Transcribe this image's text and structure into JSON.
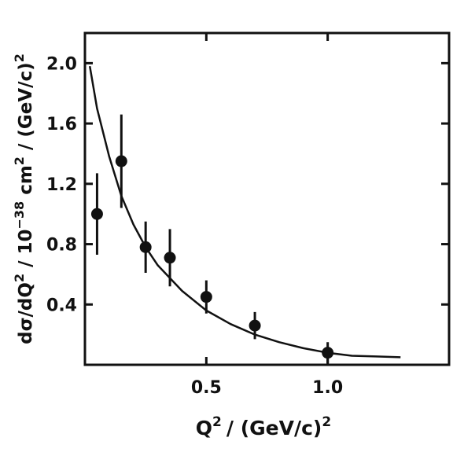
{
  "chart_data": {
    "type": "scatter",
    "title": "",
    "xlabel": "Q",
    "xlabel_sup": "2",
    "xlabel_tail": "/ (GeV/c)",
    "xlabel_tail_sup": "2",
    "ylabel_parts": [
      {
        "text": "dσ/dQ",
        "sup": false
      },
      {
        "text": "2",
        "sup": true
      },
      {
        "text": " / 10",
        "sup": false
      },
      {
        "text": "−38",
        "sup": true
      },
      {
        "text": " cm",
        "sup": false
      },
      {
        "text": "2",
        "sup": true
      },
      {
        "text": " / (GeV/c)",
        "sup": false
      },
      {
        "text": "2",
        "sup": true
      }
    ],
    "xlim": [
      0,
      1.5
    ],
    "ylim": [
      0,
      2.2
    ],
    "x_ticks": [
      0.5,
      1.0
    ],
    "x_tick_labels": [
      "0.5",
      "1.0"
    ],
    "y_ticks": [
      0.4,
      0.8,
      1.2,
      1.6,
      2.0
    ],
    "y_tick_labels": [
      "0.4",
      "0.8",
      "1.2",
      "1.6",
      "2.0"
    ],
    "grid": false,
    "points": [
      {
        "x": 0.05,
        "y": 1.0,
        "err": 0.27
      },
      {
        "x": 0.15,
        "y": 1.35,
        "err": 0.31
      },
      {
        "x": 0.25,
        "y": 0.78,
        "err": 0.17
      },
      {
        "x": 0.35,
        "y": 0.71,
        "err": 0.19
      },
      {
        "x": 0.5,
        "y": 0.45,
        "err": 0.11
      },
      {
        "x": 0.7,
        "y": 0.26,
        "err": 0.09
      },
      {
        "x": 1.0,
        "y": 0.08,
        "err": 0.07
      }
    ],
    "fit_curve": {
      "x": [
        0.02,
        0.05,
        0.1,
        0.15,
        0.2,
        0.25,
        0.3,
        0.4,
        0.5,
        0.6,
        0.7,
        0.8,
        0.9,
        1.0,
        1.1,
        1.2,
        1.3
      ],
      "y": [
        1.98,
        1.7,
        1.38,
        1.12,
        0.93,
        0.78,
        0.66,
        0.49,
        0.36,
        0.27,
        0.2,
        0.15,
        0.11,
        0.08,
        0.06,
        0.055,
        0.05
      ]
    }
  }
}
